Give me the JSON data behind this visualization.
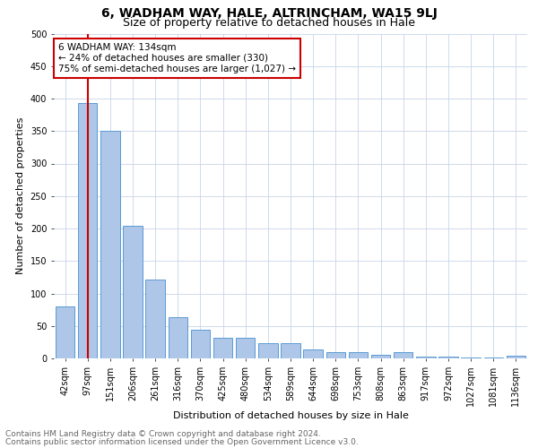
{
  "title": "6, WADHAM WAY, HALE, ALTRINCHAM, WA15 9LJ",
  "subtitle": "Size of property relative to detached houses in Hale",
  "xlabel": "Distribution of detached houses by size in Hale",
  "ylabel": "Number of detached properties",
  "footnote1": "Contains HM Land Registry data © Crown copyright and database right 2024.",
  "footnote2": "Contains public sector information licensed under the Open Government Licence v3.0.",
  "categories": [
    "42sqm",
    "97sqm",
    "151sqm",
    "206sqm",
    "261sqm",
    "316sqm",
    "370sqm",
    "425sqm",
    "480sqm",
    "534sqm",
    "589sqm",
    "644sqm",
    "698sqm",
    "753sqm",
    "808sqm",
    "863sqm",
    "917sqm",
    "972sqm",
    "1027sqm",
    "1081sqm",
    "1136sqm"
  ],
  "values": [
    80,
    393,
    351,
    204,
    122,
    64,
    44,
    32,
    32,
    23,
    23,
    14,
    9,
    9,
    6,
    10,
    3,
    3,
    2,
    2,
    4
  ],
  "bar_color": "#aec6e8",
  "bar_edge_color": "#5b9bd5",
  "highlight_line_color": "#cc0000",
  "annotation_box_color": "#cc0000",
  "annotation_text_line1": "6 WADHAM WAY: 134sqm",
  "annotation_text_line2": "← 24% of detached houses are smaller (330)",
  "annotation_text_line3": "75% of semi-detached houses are larger (1,027) →",
  "vline_bar_index": 1,
  "ylim": [
    0,
    500
  ],
  "yticks": [
    0,
    50,
    100,
    150,
    200,
    250,
    300,
    350,
    400,
    450,
    500
  ],
  "bg_color": "#ffffff",
  "grid_color": "#c8d4e8",
  "title_fontsize": 10,
  "subtitle_fontsize": 9,
  "axis_label_fontsize": 8,
  "tick_fontsize": 7,
  "annotation_fontsize": 7.5,
  "footnote_fontsize": 6.5
}
